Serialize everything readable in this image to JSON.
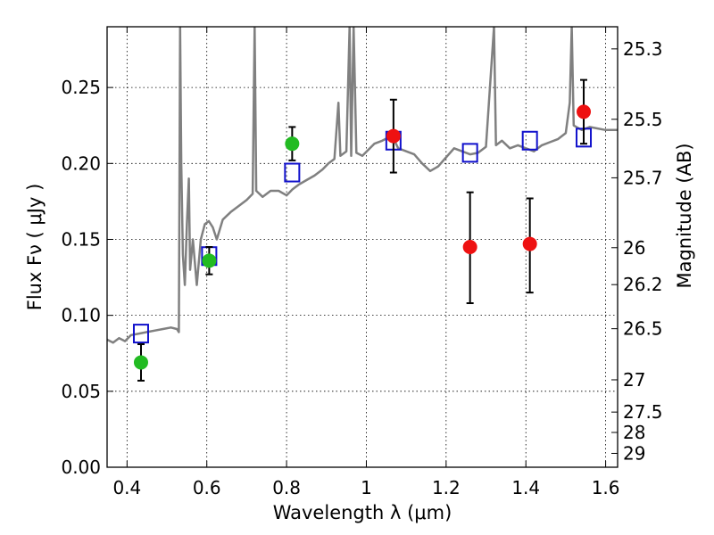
{
  "chart_data": {
    "type": "scatter",
    "xlabel": "Wavelength  λ (μm)",
    "ylabel": "Flux  Fν  ( μJy )",
    "y2label": "Magnitude (AB)",
    "xlim": [
      0.35,
      1.63
    ],
    "ylim": [
      0.0,
      0.29
    ],
    "x_ticks": [
      0.4,
      0.6,
      0.8,
      1.0,
      1.2,
      1.4,
      1.6
    ],
    "x_tick_labels": [
      "0.4",
      "0.6",
      "0.8",
      "1",
      "1.2",
      "1.4",
      "1.6"
    ],
    "y_ticks": [
      0.0,
      0.05,
      0.1,
      0.15,
      0.2,
      0.25
    ],
    "y_tick_labels": [
      "0.00",
      "0.05",
      "0.10",
      "0.15",
      "0.20",
      "0.25"
    ],
    "y2_ticks": [
      "25.3",
      "25.5",
      "25.7",
      "26",
      "26.2",
      "26.5",
      "27",
      "27.5",
      "28",
      "29"
    ],
    "grid": true,
    "colors": {
      "spectrum": "#808080",
      "green": "#22bb22",
      "red": "#ee1111",
      "model": "#1111cc",
      "errorbar": "#000000"
    },
    "series": [
      {
        "marker": "circle",
        "color": "green",
        "points": [
          {
            "x": 0.435,
            "y": 0.069,
            "yerr": [
              0.057,
              0.081
            ]
          },
          {
            "x": 0.606,
            "y": 0.136,
            "yerr": [
              0.127,
              0.145
            ]
          },
          {
            "x": 0.814,
            "y": 0.213,
            "yerr": [
              0.202,
              0.224
            ]
          }
        ]
      },
      {
        "marker": "circle",
        "color": "red",
        "points": [
          {
            "x": 1.068,
            "y": 0.218,
            "yerr": [
              0.194,
              0.242
            ]
          },
          {
            "x": 1.26,
            "y": 0.145,
            "yerr": [
              0.108,
              0.181
            ]
          },
          {
            "x": 1.41,
            "y": 0.147,
            "yerr": [
              0.115,
              0.177
            ]
          },
          {
            "x": 1.545,
            "y": 0.234,
            "yerr": [
              0.213,
              0.255
            ]
          }
        ]
      },
      {
        "marker": "square",
        "color": "model",
        "points": [
          {
            "x": 0.435,
            "y": 0.088
          },
          {
            "x": 0.606,
            "y": 0.139
          },
          {
            "x": 0.814,
            "y": 0.194
          },
          {
            "x": 1.068,
            "y": 0.215
          },
          {
            "x": 1.26,
            "y": 0.207
          },
          {
            "x": 1.41,
            "y": 0.215
          },
          {
            "x": 1.545,
            "y": 0.217
          }
        ]
      }
    ],
    "spectrum": [
      [
        0.35,
        0.084
      ],
      [
        0.365,
        0.082
      ],
      [
        0.38,
        0.085
      ],
      [
        0.395,
        0.083
      ],
      [
        0.41,
        0.087
      ],
      [
        0.43,
        0.088
      ],
      [
        0.45,
        0.089
      ],
      [
        0.47,
        0.09
      ],
      [
        0.49,
        0.091
      ],
      [
        0.51,
        0.092
      ],
      [
        0.525,
        0.091
      ],
      [
        0.53,
        0.089
      ],
      [
        0.533,
        0.29
      ],
      [
        0.536,
        0.2
      ],
      [
        0.54,
        0.14
      ],
      [
        0.545,
        0.12
      ],
      [
        0.55,
        0.16
      ],
      [
        0.555,
        0.19
      ],
      [
        0.558,
        0.13
      ],
      [
        0.565,
        0.15
      ],
      [
        0.575,
        0.12
      ],
      [
        0.585,
        0.15
      ],
      [
        0.595,
        0.16
      ],
      [
        0.605,
        0.162
      ],
      [
        0.615,
        0.158
      ],
      [
        0.625,
        0.15
      ],
      [
        0.64,
        0.163
      ],
      [
        0.66,
        0.168
      ],
      [
        0.68,
        0.172
      ],
      [
        0.7,
        0.176
      ],
      [
        0.715,
        0.18
      ],
      [
        0.72,
        0.29
      ],
      [
        0.724,
        0.182
      ],
      [
        0.74,
        0.178
      ],
      [
        0.76,
        0.182
      ],
      [
        0.78,
        0.182
      ],
      [
        0.8,
        0.179
      ],
      [
        0.815,
        0.183
      ],
      [
        0.83,
        0.186
      ],
      [
        0.85,
        0.189
      ],
      [
        0.87,
        0.192
      ],
      [
        0.89,
        0.196
      ],
      [
        0.905,
        0.2
      ],
      [
        0.92,
        0.203
      ],
      [
        0.93,
        0.24
      ],
      [
        0.935,
        0.205
      ],
      [
        0.95,
        0.208
      ],
      [
        0.958,
        0.29
      ],
      [
        0.962,
        0.205
      ],
      [
        0.968,
        0.29
      ],
      [
        0.975,
        0.207
      ],
      [
        0.99,
        0.205
      ],
      [
        1.005,
        0.209
      ],
      [
        1.02,
        0.213
      ],
      [
        1.04,
        0.215
      ],
      [
        1.055,
        0.217
      ],
      [
        1.065,
        0.218
      ],
      [
        1.08,
        0.21
      ],
      [
        1.1,
        0.208
      ],
      [
        1.12,
        0.206
      ],
      [
        1.14,
        0.2
      ],
      [
        1.16,
        0.195
      ],
      [
        1.18,
        0.198
      ],
      [
        1.2,
        0.204
      ],
      [
        1.22,
        0.21
      ],
      [
        1.24,
        0.208
      ],
      [
        1.26,
        0.206
      ],
      [
        1.28,
        0.207
      ],
      [
        1.3,
        0.211
      ],
      [
        1.32,
        0.29
      ],
      [
        1.325,
        0.212
      ],
      [
        1.34,
        0.215
      ],
      [
        1.36,
        0.21
      ],
      [
        1.38,
        0.212
      ],
      [
        1.4,
        0.21
      ],
      [
        1.42,
        0.208
      ],
      [
        1.44,
        0.212
      ],
      [
        1.46,
        0.214
      ],
      [
        1.48,
        0.216
      ],
      [
        1.5,
        0.22
      ],
      [
        1.51,
        0.24
      ],
      [
        1.515,
        0.29
      ],
      [
        1.52,
        0.225
      ],
      [
        1.54,
        0.222
      ],
      [
        1.56,
        0.224
      ],
      [
        1.58,
        0.223
      ],
      [
        1.6,
        0.222
      ],
      [
        1.63,
        0.222
      ]
    ]
  }
}
